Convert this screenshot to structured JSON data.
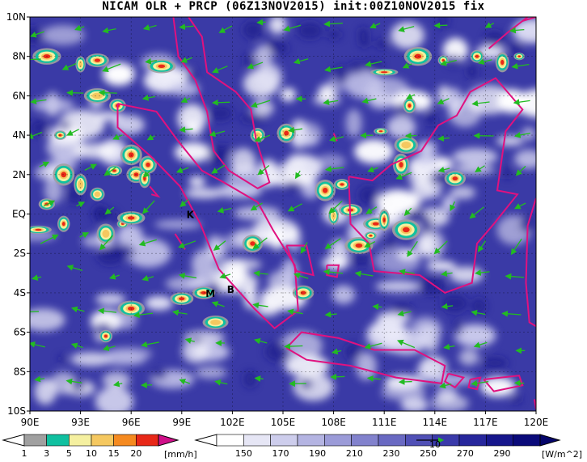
{
  "title": "NICAM OLR + PRCP (06Z13NOV2015) init:00Z10NOV2015 fix",
  "map": {
    "lon_ticks": [
      "90E",
      "93E",
      "96E",
      "99E",
      "102E",
      "105E",
      "108E",
      "111E",
      "114E",
      "117E",
      "120E"
    ],
    "lat_ticks": [
      "10N",
      "8N",
      "6N",
      "4N",
      "2N",
      "EQ",
      "2S",
      "4S",
      "6S",
      "8S",
      "10S"
    ],
    "lon_range": [
      90,
      120
    ],
    "lat_range": [
      -10,
      10
    ],
    "grid": true,
    "coastline_color": "#e0117f",
    "vector_color": "#22bb22",
    "markers": [
      {
        "label": "K",
        "lon": 99.5,
        "lat": -0.2
      },
      {
        "label": "M",
        "lon": 100.7,
        "lat": -4.2
      },
      {
        "label": "B",
        "lon": 101.9,
        "lat": -4.0
      }
    ]
  },
  "precip_colorbar": {
    "labels": [
      "1",
      "3",
      "5",
      "10",
      "15",
      "20"
    ],
    "unit": "[mm/h]",
    "colors": [
      "#a0a0a0",
      "#10c0a0",
      "#f5f0a0",
      "#f5c860",
      "#f58a20",
      "#e82818",
      "#d0108a"
    ]
  },
  "olr_colorbar": {
    "labels": [
      "150",
      "170",
      "190",
      "210",
      "230",
      "250",
      "270",
      "290"
    ],
    "unit": "[W/m^2]",
    "overlay": "10",
    "colors": [
      "#ffffff",
      "#e6e6f5",
      "#cdcdec",
      "#b4b4e2",
      "#9b9bd8",
      "#8282cd",
      "#6969c2",
      "#5050b6",
      "#3a3aaa",
      "#26269c",
      "#16168c",
      "#0a0a7a"
    ]
  }
}
